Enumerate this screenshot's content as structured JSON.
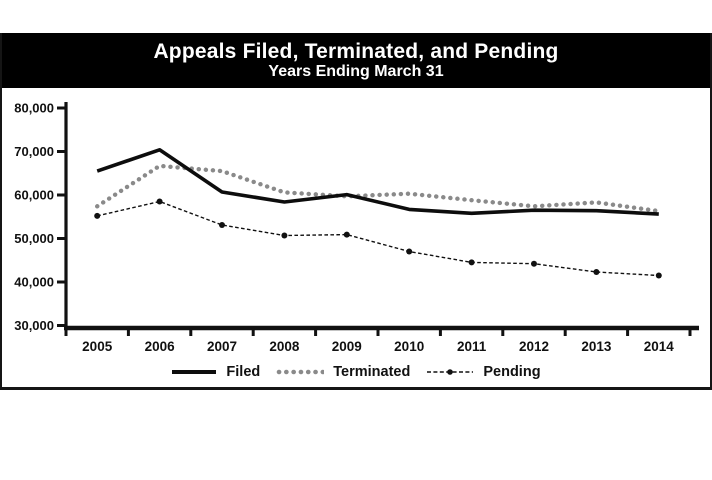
{
  "figure": {
    "title_line1": "Appeals Filed, Terminated, and Pending",
    "title_line2": "Years Ending March 31",
    "titlebar_bg": "#000000",
    "titlebar_text_color": "#ffffff",
    "frame_color": "#151515"
  },
  "chart_data": {
    "type": "line",
    "title": "Appeals Filed, Terminated, and Pending",
    "subtitle": "Years Ending March 31",
    "categories": [
      "2005",
      "2006",
      "2007",
      "2008",
      "2009",
      "2010",
      "2011",
      "2012",
      "2013",
      "2014"
    ],
    "ylim": [
      30000,
      80000
    ],
    "y_tick_step": 10000,
    "y_ticks": [
      {
        "value": 80000,
        "label": "80,000"
      },
      {
        "value": 70000,
        "label": "70,000"
      },
      {
        "value": 60000,
        "label": "60,000"
      },
      {
        "value": 50000,
        "label": "50,000"
      },
      {
        "value": 40000,
        "label": "40,000"
      },
      {
        "value": 30000,
        "label": "30,000"
      }
    ],
    "series": [
      {
        "name": "Filed",
        "style": "solid",
        "color": "#0d0d0d",
        "marker": false,
        "values": [
          65500,
          70400,
          60700,
          58400,
          60100,
          56700,
          55800,
          56500,
          56400,
          55600
        ]
      },
      {
        "name": "Terminated",
        "style": "dotted",
        "color": "#8a8a8a",
        "marker": false,
        "values": [
          57400,
          66700,
          65500,
          60600,
          59700,
          60300,
          58800,
          57400,
          58300,
          56300
        ]
      },
      {
        "name": "Pending",
        "style": "dash-dot",
        "color": "#111111",
        "marker": true,
        "values": [
          55200,
          58500,
          53100,
          50700,
          50900,
          47000,
          44500,
          44200,
          42300,
          41500
        ]
      }
    ],
    "legend_position": "bottom",
    "grid": false,
    "axis_color": "#111111"
  }
}
